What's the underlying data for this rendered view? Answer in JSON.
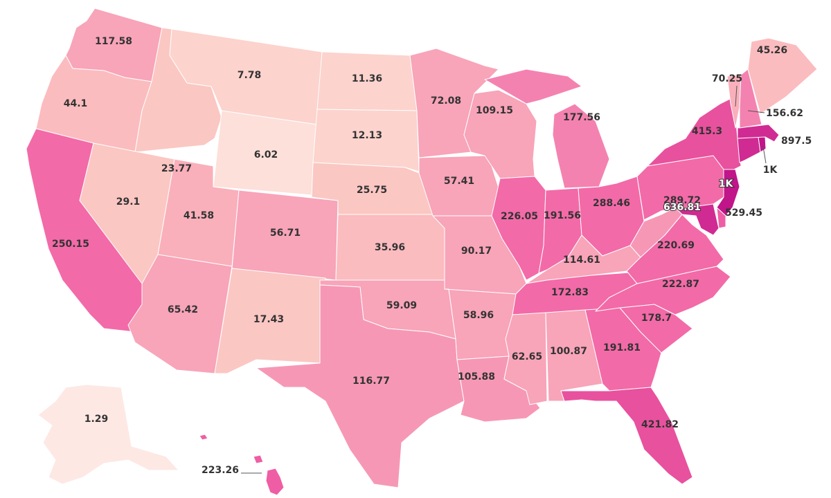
{
  "map": {
    "region": "United States",
    "palette": {
      "c0": "#fde8e4",
      "c1": "#fde0da",
      "c2": "#fcd3cd",
      "c3": "#fbc7c3",
      "c4": "#fbbcbf",
      "c5": "#f9b0bb",
      "c6": "#f8a4b9",
      "c7": "#f698b5",
      "c8": "#f482b0",
      "c9": "#f36aa8",
      "c10": "#ef5ea5",
      "c11": "#e8519e",
      "c12": "#d02b92",
      "c13": "#c1158a"
    },
    "states": [
      {
        "id": "WA",
        "value": "117.58"
      },
      {
        "id": "OR",
        "value": "44.1"
      },
      {
        "id": "CA",
        "value": "250.15"
      },
      {
        "id": "ID",
        "value": "23.77"
      },
      {
        "id": "NV",
        "value": "29.1"
      },
      {
        "id": "MT",
        "value": "7.78"
      },
      {
        "id": "WY",
        "value": "6.02"
      },
      {
        "id": "UT",
        "value": "41.58"
      },
      {
        "id": "AZ",
        "value": "65.42"
      },
      {
        "id": "CO",
        "value": "56.71"
      },
      {
        "id": "NM",
        "value": "17.43"
      },
      {
        "id": "ND",
        "value": "11.36"
      },
      {
        "id": "SD",
        "value": "12.13"
      },
      {
        "id": "NE",
        "value": "25.75"
      },
      {
        "id": "KS",
        "value": "35.96"
      },
      {
        "id": "OK",
        "value": "59.09"
      },
      {
        "id": "TX",
        "value": "116.77"
      },
      {
        "id": "MN",
        "value": "72.08"
      },
      {
        "id": "IA",
        "value": "57.41"
      },
      {
        "id": "MO",
        "value": "90.17"
      },
      {
        "id": "AR",
        "value": "58.96"
      },
      {
        "id": "LA",
        "value": "105.88"
      },
      {
        "id": "WI",
        "value": "109.15"
      },
      {
        "id": "IL",
        "value": "226.05"
      },
      {
        "id": "MI",
        "value": "177.56"
      },
      {
        "id": "IN",
        "value": "191.56"
      },
      {
        "id": "OH",
        "value": "288.46"
      },
      {
        "id": "KY",
        "value": "114.61"
      },
      {
        "id": "TN",
        "value": "172.83"
      },
      {
        "id": "MS",
        "value": "62.65"
      },
      {
        "id": "AL",
        "value": "100.87"
      },
      {
        "id": "GA",
        "value": "191.81"
      },
      {
        "id": "FL",
        "value": "421.82"
      },
      {
        "id": "SC",
        "value": "178.7"
      },
      {
        "id": "NC",
        "value": "222.87"
      },
      {
        "id": "VA",
        "value": "220.69"
      },
      {
        "id": "WV",
        "value": ""
      },
      {
        "id": "PA",
        "value": "289.72"
      },
      {
        "id": "NY",
        "value": "415.3"
      },
      {
        "id": "NJ",
        "value": "1K"
      },
      {
        "id": "DE",
        "value": "529.45"
      },
      {
        "id": "MD",
        "value": "636.81"
      },
      {
        "id": "CT",
        "value": ""
      },
      {
        "id": "RI",
        "value": "1K"
      },
      {
        "id": "MA",
        "value": "897.5"
      },
      {
        "id": "VT",
        "value": "70.25"
      },
      {
        "id": "NH",
        "value": "156.62"
      },
      {
        "id": "ME",
        "value": "45.26"
      },
      {
        "id": "AK",
        "value": "1.29"
      },
      {
        "id": "HI",
        "value": "223.26"
      }
    ]
  }
}
